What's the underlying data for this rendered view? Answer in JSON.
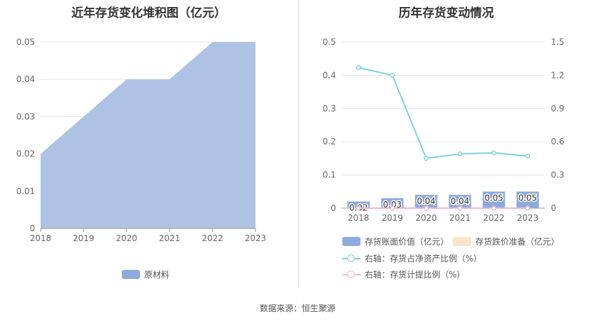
{
  "left": {
    "title": "近年存货变化堆积图（亿元）",
    "legend_label": "原材料",
    "legend_color": "#8faadc"
  },
  "right": {
    "title": "历年存货变动情况",
    "legend": {
      "bar": "存货账面价值（亿元）",
      "reserve": "存货跌价准备（亿元）",
      "ratio_line": "右轴：存货占净资产比例（%）",
      "provision_line": "右轴：存货计提比例（%）"
    }
  },
  "source": "数据来源：恒生聚源",
  "chart_data": [
    {
      "type": "area",
      "title": "近年存货变化堆积图（亿元）",
      "x": [
        "2018",
        "2019",
        "2020",
        "2021",
        "2022",
        "2023"
      ],
      "series": [
        {
          "name": "原材料",
          "values": [
            0.02,
            0.03,
            0.04,
            0.04,
            0.05,
            0.05
          ],
          "color": "#aec3e4"
        }
      ],
      "yticks": [
        "0",
        "0.01",
        "0.02",
        "0.03",
        "0.04",
        "0.05"
      ],
      "ylim": [
        0,
        0.05
      ],
      "legend": "bottom"
    },
    {
      "type": "bar",
      "title": "历年存货变动情况",
      "categories": [
        "2018",
        "2019",
        "2020",
        "2021",
        "2022",
        "2023"
      ],
      "series": [
        {
          "name": "存货账面价值（亿元）",
          "values": [
            0.02,
            0.03,
            0.04,
            0.04,
            0.05,
            0.05
          ],
          "labels": [
            "0.02",
            "0.03",
            "0.04",
            "0.04",
            "0.05",
            "0.05"
          ],
          "color": "#8faadc",
          "axis": "left"
        },
        {
          "name": "存货跌价准备（亿元）",
          "values": [
            0,
            0,
            0,
            0,
            0,
            0
          ],
          "color": "#fbe5c8",
          "axis": "left"
        },
        {
          "name": "右轴：存货占净资产比例（%）",
          "type": "line",
          "values": [
            1.27,
            1.2,
            0.45,
            0.49,
            0.5,
            0.47
          ],
          "color": "#7ed3db",
          "axis": "right"
        },
        {
          "name": "右轴：存货计提比例（%）",
          "type": "line",
          "values": [
            0,
            0,
            0,
            0,
            0,
            0
          ],
          "color": "#f0b6cf",
          "axis": "right"
        }
      ],
      "y_left_ticks": [
        "0",
        "0.1",
        "0.2",
        "0.3",
        "0.4",
        "0.5"
      ],
      "y_left_lim": [
        0,
        0.5
      ],
      "y_right_ticks": [
        "0",
        "0.3",
        "0.6",
        "0.9",
        "1.2",
        "1.5"
      ],
      "y_right_lim": [
        0,
        1.5
      ],
      "legend": "bottom"
    }
  ]
}
